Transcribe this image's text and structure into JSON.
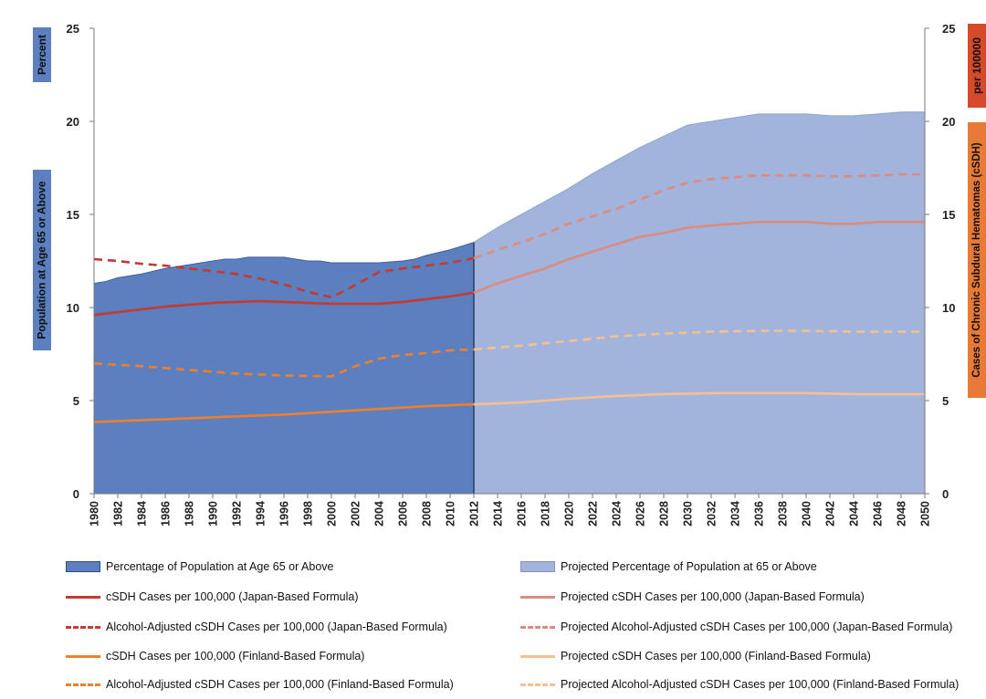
{
  "chart_data": {
    "type": "area",
    "title": "",
    "left_axis": {
      "label_top": "Percent",
      "label_bottom": "Population at Age 65 or Above",
      "min": 0,
      "max": 25,
      "ticks": [
        0,
        5,
        10,
        15,
        20,
        25
      ]
    },
    "right_axis": {
      "label_top": "per 100000",
      "label_bottom": "Cases of Chronic Subdural Hematomas (cSDH)",
      "min": 0,
      "max": 25,
      "ticks": [
        0,
        5,
        10,
        15,
        20,
        25
      ]
    },
    "x_ticks": [
      "1980",
      "1982",
      "1984",
      "1986",
      "1988",
      "1990",
      "1992",
      "1994",
      "1996",
      "1998",
      "2000",
      "2002",
      "2004",
      "2006",
      "2008",
      "2010",
      "2012",
      "2014",
      "2016",
      "2018",
      "2020",
      "2022",
      "2024",
      "2026",
      "2028",
      "2030",
      "2032",
      "2034",
      "2036",
      "2038",
      "2040",
      "2042",
      "2044",
      "2046",
      "2048",
      "2050"
    ],
    "split_year": 2012,
    "series": [
      {
        "name": "Percentage of Population at Age 65 or Above",
        "style": "area",
        "color": "#5b7fbf",
        "x": [
          1980,
          1981,
          1982,
          1984,
          1986,
          1988,
          1990,
          1991,
          1992,
          1993,
          1994,
          1996,
          1998,
          1999,
          2000,
          2002,
          2004,
          2006,
          2007,
          2008,
          2010,
          2012
        ],
        "values": [
          11.3,
          11.4,
          11.6,
          11.8,
          12.1,
          12.3,
          12.5,
          12.6,
          12.6,
          12.7,
          12.7,
          12.7,
          12.5,
          12.5,
          12.4,
          12.4,
          12.4,
          12.5,
          12.6,
          12.8,
          13.1,
          13.5
        ]
      },
      {
        "name": "Projected Percentage of Population at 65 or Above",
        "style": "area",
        "color": "#a2b4dc",
        "x": [
          2012,
          2014,
          2016,
          2018,
          2020,
          2022,
          2024,
          2026,
          2028,
          2030,
          2032,
          2034,
          2036,
          2038,
          2040,
          2042,
          2044,
          2046,
          2048,
          2050
        ],
        "values": [
          13.5,
          14.3,
          15.0,
          15.7,
          16.4,
          17.2,
          17.9,
          18.6,
          19.2,
          19.8,
          20.0,
          20.2,
          20.4,
          20.4,
          20.4,
          20.3,
          20.3,
          20.4,
          20.5,
          20.5
        ]
      },
      {
        "name": "cSDH Cases per 100,000 (Japan-Based Formula)",
        "style": "solid",
        "color": "#c43a30",
        "x": [
          1980,
          1982,
          1984,
          1986,
          1988,
          1990,
          1992,
          1994,
          1996,
          1998,
          2000,
          2002,
          2004,
          2006,
          2008,
          2010,
          2012
        ],
        "values": [
          9.6,
          9.75,
          9.9,
          10.05,
          10.15,
          10.25,
          10.3,
          10.35,
          10.3,
          10.25,
          10.2,
          10.2,
          10.2,
          10.3,
          10.45,
          10.6,
          10.8
        ]
      },
      {
        "name": "Projected cSDH Cases per 100,000 (Japan-Based Formula)",
        "style": "solid",
        "color": "#db8c7e",
        "x": [
          2012,
          2014,
          2016,
          2018,
          2020,
          2022,
          2024,
          2026,
          2028,
          2030,
          2032,
          2034,
          2036,
          2038,
          2040,
          2042,
          2044,
          2046,
          2048,
          2050
        ],
        "values": [
          10.8,
          11.3,
          11.7,
          12.1,
          12.6,
          13.0,
          13.4,
          13.8,
          14.0,
          14.3,
          14.4,
          14.5,
          14.6,
          14.6,
          14.6,
          14.5,
          14.5,
          14.6,
          14.6,
          14.6
        ]
      },
      {
        "name": "Alcohol-Adjusted cSDH Cases per 100,000 (Japan-Based Formula)",
        "style": "dashed",
        "color": "#c43a30",
        "x": [
          1980,
          1982,
          1984,
          1986,
          1988,
          1990,
          1992,
          1994,
          1996,
          1998,
          2000,
          2002,
          2004,
          2006,
          2008,
          2010,
          2012
        ],
        "values": [
          12.6,
          12.5,
          12.35,
          12.25,
          12.1,
          11.95,
          11.8,
          11.55,
          11.25,
          10.85,
          10.55,
          11.2,
          11.9,
          12.1,
          12.25,
          12.4,
          12.65
        ]
      },
      {
        "name": "Projected Alcohol-Adjusted cSDH Cases per 100,000 (Japan-Based Formula)",
        "style": "dashed",
        "color": "#db8c7e",
        "x": [
          2012,
          2014,
          2016,
          2018,
          2020,
          2022,
          2024,
          2026,
          2028,
          2030,
          2032,
          2034,
          2036,
          2038,
          2040,
          2042,
          2044,
          2046,
          2048,
          2050
        ],
        "values": [
          12.65,
          13.1,
          13.5,
          13.95,
          14.5,
          14.9,
          15.3,
          15.8,
          16.3,
          16.7,
          16.9,
          17.0,
          17.1,
          17.1,
          17.1,
          17.05,
          17.05,
          17.1,
          17.15,
          17.15
        ]
      },
      {
        "name": "cSDH Cases per 100,000 (Finland-Based Formula)",
        "style": "solid",
        "color": "#ef7f2d",
        "x": [
          1980,
          1984,
          1988,
          1992,
          1996,
          2000,
          2004,
          2008,
          2012
        ],
        "values": [
          3.85,
          3.95,
          4.05,
          4.15,
          4.25,
          4.4,
          4.55,
          4.7,
          4.8
        ]
      },
      {
        "name": "Projected cSDH Cases per 100,000 (Finland-Based Formula)",
        "style": "solid",
        "color": "#f4c08f",
        "x": [
          2012,
          2016,
          2020,
          2024,
          2028,
          2032,
          2036,
          2040,
          2044,
          2050
        ],
        "values": [
          4.8,
          4.9,
          5.1,
          5.25,
          5.35,
          5.4,
          5.4,
          5.4,
          5.35,
          5.35
        ]
      },
      {
        "name": "Alcohol-Adjusted cSDH Cases per 100,000 (Finland-Based Formula)",
        "style": "dashed",
        "color": "#ef7f2d",
        "x": [
          1980,
          1984,
          1988,
          1992,
          1996,
          2000,
          2002,
          2004,
          2006,
          2008,
          2010,
          2012
        ],
        "values": [
          7.0,
          6.85,
          6.65,
          6.45,
          6.35,
          6.3,
          6.85,
          7.25,
          7.45,
          7.55,
          7.7,
          7.75
        ]
      },
      {
        "name": "Projected Alcohol-Adjusted cSDH Cases per 100,000 (Finland-Based Formula)",
        "style": "dashed",
        "color": "#f4c08f",
        "x": [
          2012,
          2016,
          2020,
          2024,
          2028,
          2032,
          2036,
          2040,
          2044,
          2050
        ],
        "values": [
          7.75,
          7.95,
          8.2,
          8.45,
          8.6,
          8.7,
          8.75,
          8.75,
          8.7,
          8.7
        ]
      }
    ]
  }
}
